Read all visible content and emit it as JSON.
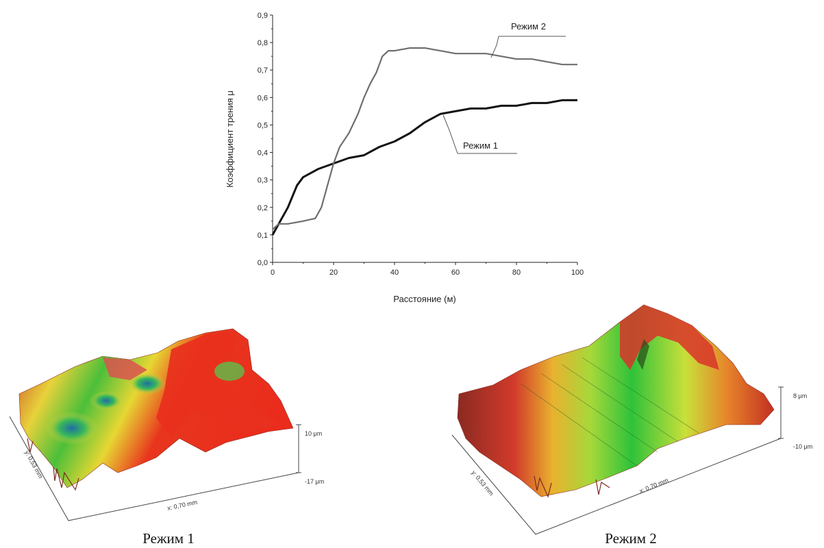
{
  "chart_data": {
    "type": "line",
    "xlabel": "Расстояние (м)",
    "ylabel": "Коэффициент трения μ",
    "xlim": [
      0,
      100
    ],
    "ylim": [
      0,
      0.9
    ],
    "x_ticks": [
      "0",
      "20",
      "40",
      "60",
      "80",
      "100"
    ],
    "y_ticks": [
      "0,0",
      "0,1",
      "0,2",
      "0,3",
      "0,4",
      "0,5",
      "0,6",
      "0,7",
      "0,8",
      "0,9"
    ],
    "grid": false,
    "series": [
      {
        "name": "Режим 1",
        "color": "#111111",
        "x": [
          0,
          2,
          5,
          8,
          10,
          15,
          20,
          25,
          30,
          35,
          40,
          45,
          50,
          55,
          60,
          65,
          70,
          75,
          80,
          85,
          90,
          95,
          100
        ],
        "y": [
          0.1,
          0.14,
          0.2,
          0.28,
          0.31,
          0.34,
          0.36,
          0.38,
          0.39,
          0.42,
          0.44,
          0.47,
          0.51,
          0.54,
          0.55,
          0.56,
          0.56,
          0.57,
          0.57,
          0.58,
          0.58,
          0.59,
          0.59
        ]
      },
      {
        "name": "Режим 2",
        "color": "#6e6e6e",
        "x": [
          0,
          2,
          5,
          10,
          14,
          16,
          18,
          20,
          22,
          25,
          28,
          30,
          32,
          34,
          36,
          38,
          40,
          45,
          50,
          55,
          60,
          65,
          70,
          75,
          80,
          85,
          90,
          95,
          100
        ],
        "y": [
          0.12,
          0.14,
          0.14,
          0.15,
          0.16,
          0.2,
          0.28,
          0.36,
          0.42,
          0.47,
          0.54,
          0.6,
          0.65,
          0.69,
          0.75,
          0.77,
          0.77,
          0.78,
          0.78,
          0.77,
          0.76,
          0.76,
          0.76,
          0.75,
          0.74,
          0.74,
          0.73,
          0.72,
          0.72
        ]
      }
    ]
  },
  "surfaces": [
    {
      "caption": "Режим 1",
      "x_label": "x: 0,70 mm",
      "y_label": "y: 0,53 mm",
      "z_max": "10 μm",
      "z_min": "-17 μm"
    },
    {
      "caption": "Режим 2",
      "x_label": "x: 0,70 mm",
      "y_label": "y: 0,53 mm",
      "z_max": "8 μm",
      "z_min": "-10 μm"
    }
  ]
}
